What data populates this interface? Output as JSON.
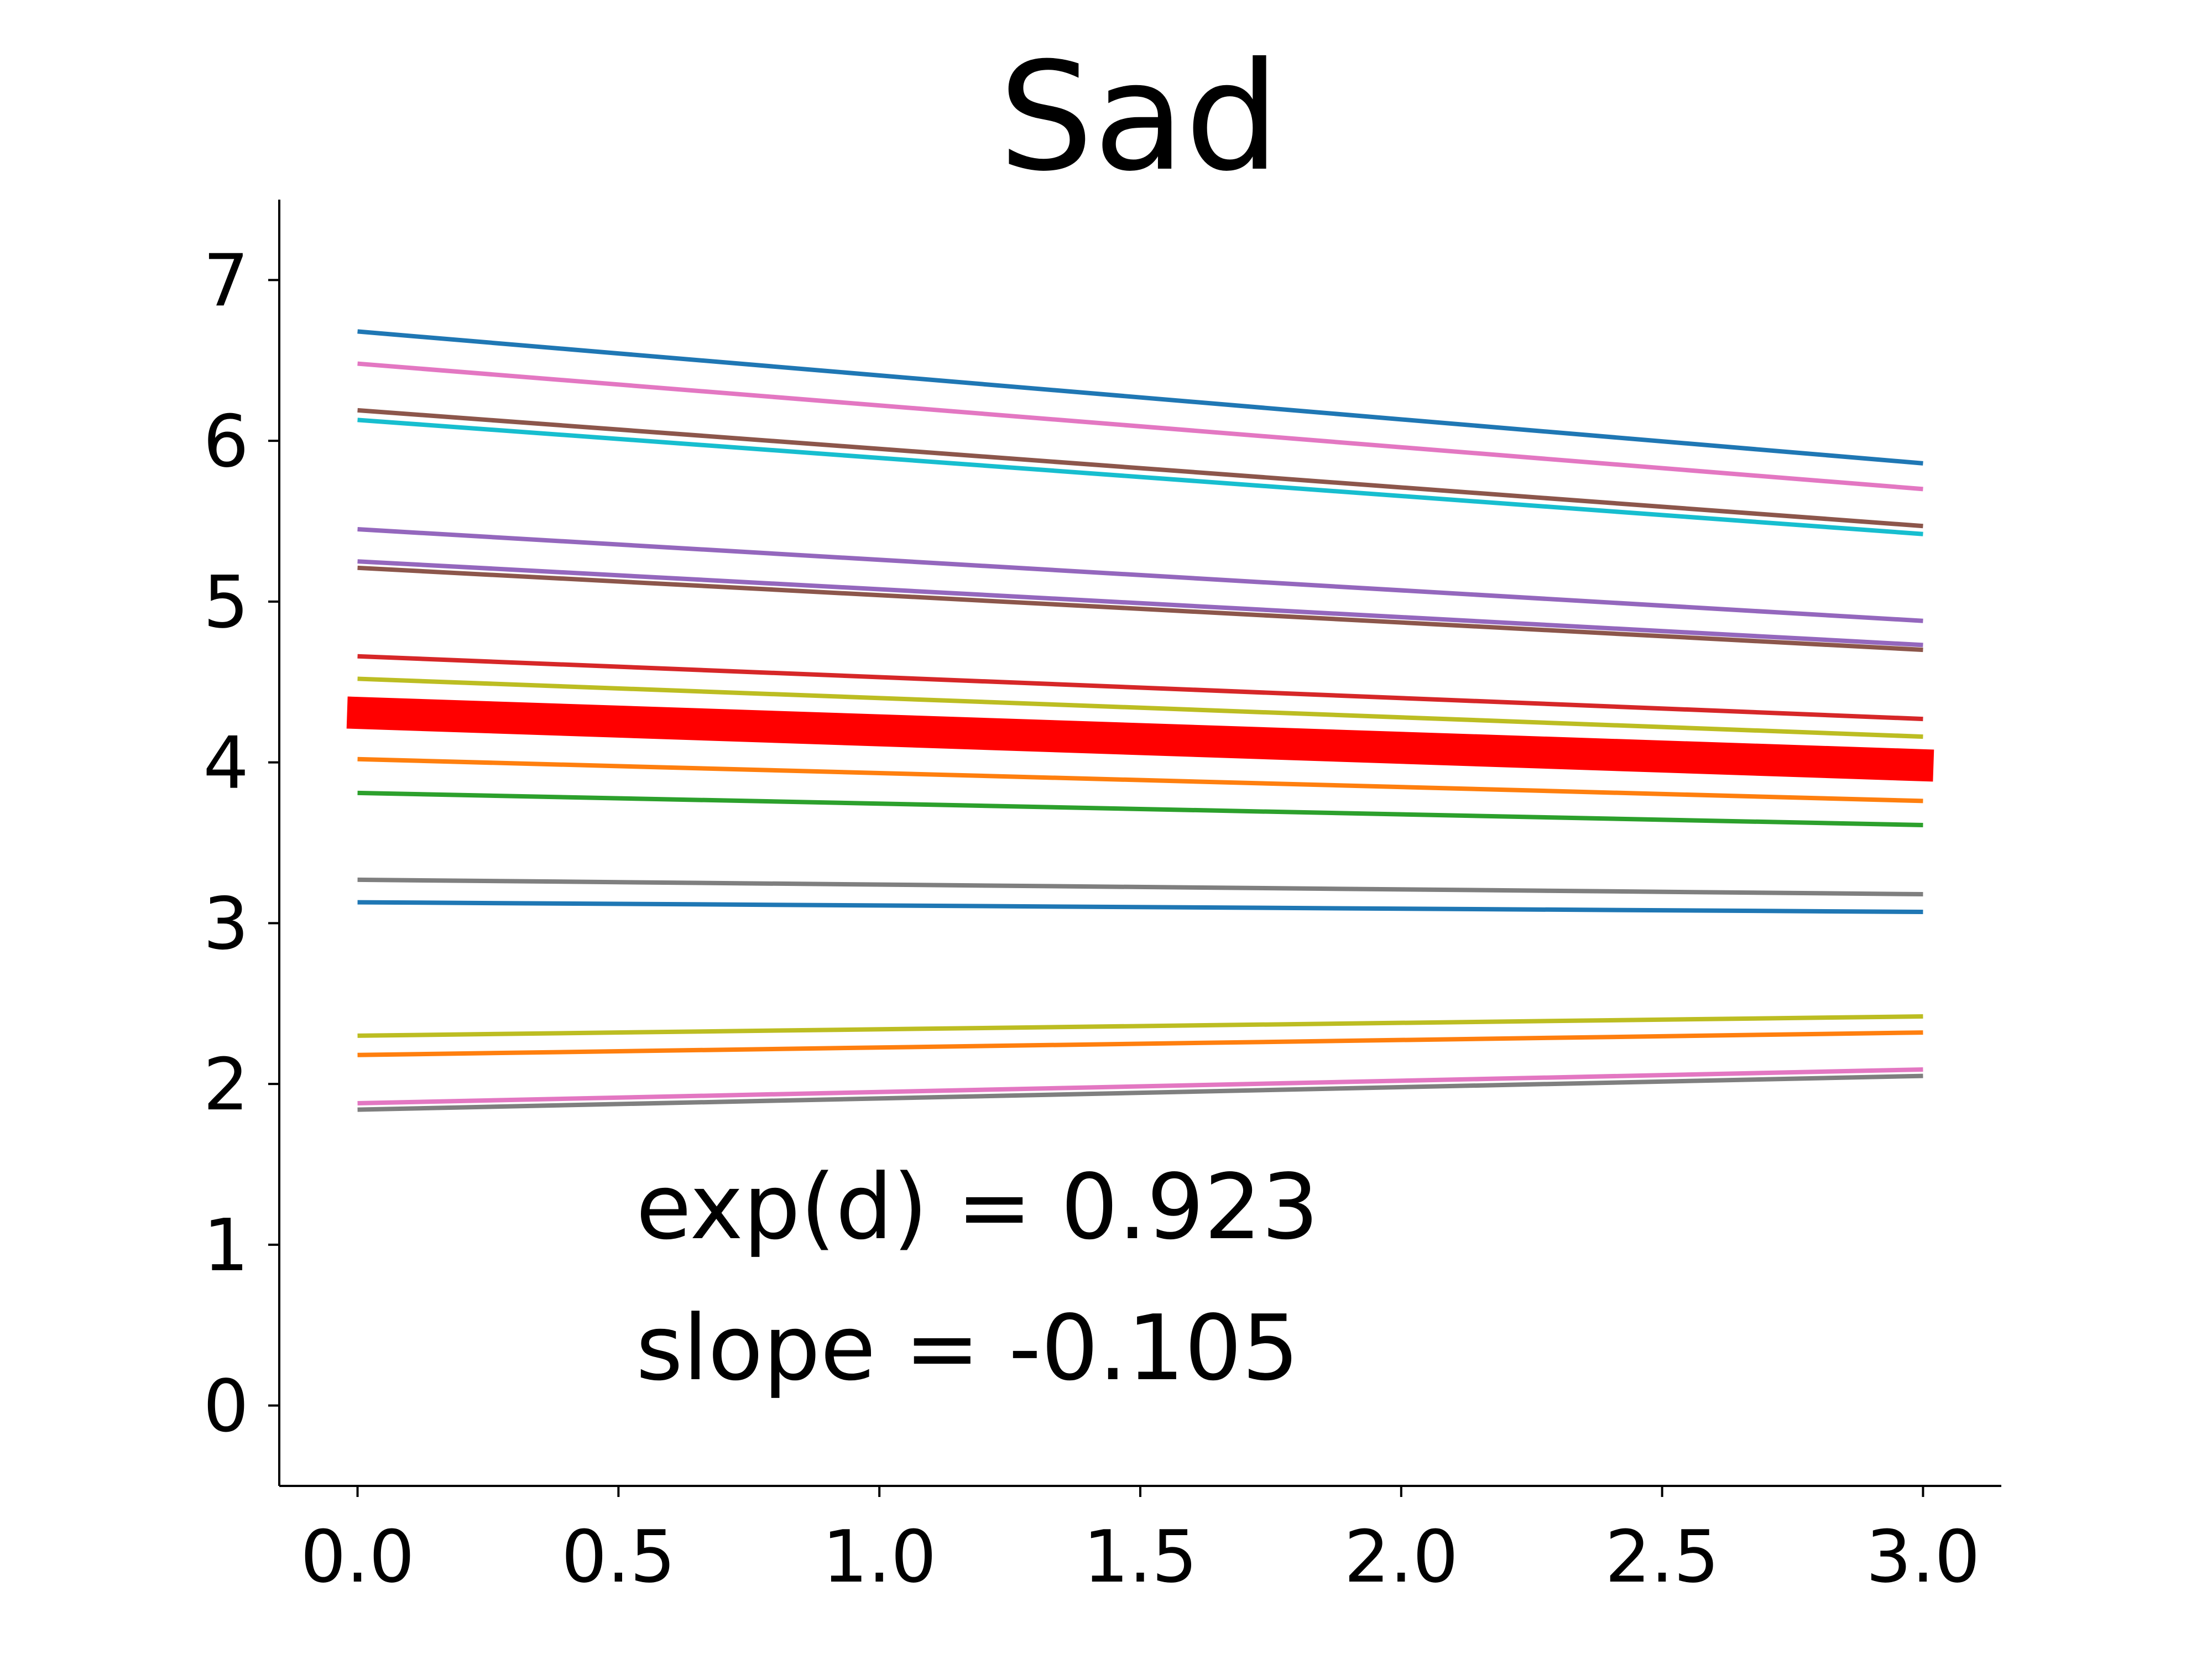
{
  "chart_data": {
    "type": "line",
    "title": "Sad",
    "xlabel": "",
    "ylabel": "",
    "xlim": [
      -0.15,
      3.15
    ],
    "ylim": [
      -0.5,
      7.5
    ],
    "x_ticks": [
      0.0,
      0.5,
      1.0,
      1.5,
      2.0,
      2.5,
      3.0
    ],
    "x_tick_labels": [
      "0.0",
      "0.5",
      "1.0",
      "1.5",
      "2.0",
      "2.5",
      "3.0"
    ],
    "y_ticks": [
      0,
      1,
      2,
      3,
      4,
      5,
      6,
      7
    ],
    "y_tick_labels": [
      "0",
      "1",
      "2",
      "3",
      "4",
      "5",
      "6",
      "7"
    ],
    "grid": false,
    "series": [
      {
        "color": "#1f77b4",
        "x": [
          0,
          3
        ],
        "y": [
          6.68,
          5.86
        ]
      },
      {
        "color": "#e377c2",
        "x": [
          0,
          3
        ],
        "y": [
          6.48,
          5.7
        ]
      },
      {
        "color": "#8c564b",
        "x": [
          0,
          3
        ],
        "y": [
          6.19,
          5.47
        ]
      },
      {
        "color": "#17becf",
        "x": [
          0,
          3
        ],
        "y": [
          6.13,
          5.42
        ]
      },
      {
        "color": "#9467bd",
        "x": [
          0,
          3
        ],
        "y": [
          5.45,
          4.88
        ]
      },
      {
        "color": "#9467bd",
        "x": [
          0,
          3
        ],
        "y": [
          5.25,
          4.73
        ]
      },
      {
        "color": "#8c564b",
        "x": [
          0,
          3
        ],
        "y": [
          5.21,
          4.7
        ]
      },
      {
        "color": "#d62728",
        "x": [
          0,
          3
        ],
        "y": [
          4.66,
          4.27
        ]
      },
      {
        "color": "#bcbd22",
        "x": [
          0,
          3
        ],
        "y": [
          4.52,
          4.16
        ]
      },
      {
        "color": "#ff7f0e",
        "x": [
          0,
          3
        ],
        "y": [
          4.02,
          3.76
        ]
      },
      {
        "color": "#2ca02c",
        "x": [
          0,
          3
        ],
        "y": [
          3.81,
          3.61
        ]
      },
      {
        "color": "#7f7f7f",
        "x": [
          0,
          3
        ],
        "y": [
          3.27,
          3.18
        ]
      },
      {
        "color": "#1f77b4",
        "x": [
          0,
          3
        ],
        "y": [
          3.13,
          3.07
        ]
      },
      {
        "color": "#bcbd22",
        "x": [
          0,
          3
        ],
        "y": [
          2.3,
          2.42
        ]
      },
      {
        "color": "#ff7f0e",
        "x": [
          0,
          3
        ],
        "y": [
          2.18,
          2.32
        ]
      },
      {
        "color": "#e377c2",
        "x": [
          0,
          3
        ],
        "y": [
          1.88,
          2.09
        ]
      },
      {
        "color": "#7f7f7f",
        "x": [
          0,
          3
        ],
        "y": [
          1.84,
          2.05
        ]
      }
    ],
    "mean_line": {
      "color": "#ff0000",
      "x": [
        -0.02,
        3.02
      ],
      "y": [
        4.31,
        3.98
      ]
    },
    "annotations": [
      "exp(d) = 0.923",
      "slope = -0.105"
    ]
  }
}
